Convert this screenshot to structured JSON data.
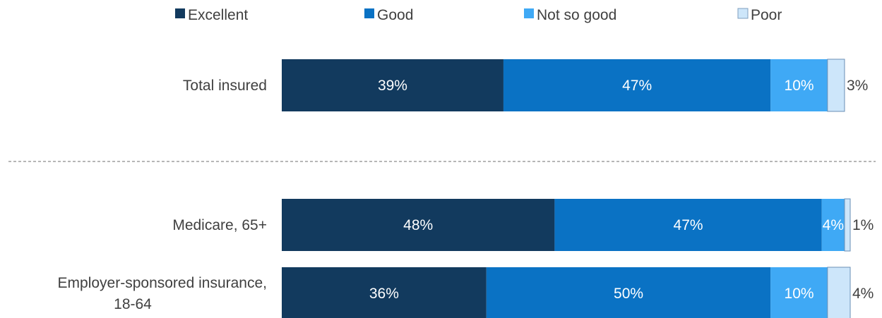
{
  "chart_data": {
    "type": "bar",
    "orientation": "horizontal",
    "stacked": true,
    "percent": true,
    "legend": {
      "placement": "top",
      "items": [
        {
          "name": "Excellent",
          "color": "#123a5e"
        },
        {
          "name": "Good",
          "color": "#0a72c4"
        },
        {
          "name": "Not so good",
          "color": "#3fa9f5"
        },
        {
          "name": "Poor",
          "color": "#cde6fa"
        }
      ]
    },
    "categories": [
      {
        "label": "Total insured",
        "lines": [
          "Total insured"
        ]
      },
      {
        "label": "Medicare, 65+",
        "lines": [
          "Medicare, 65+"
        ]
      },
      {
        "label": "Employer-sponsored insurance, 18-64",
        "lines": [
          "Employer-sponsored insurance,",
          "18-64"
        ]
      }
    ],
    "series": [
      {
        "name": "Excellent",
        "values": [
          39,
          48,
          36
        ],
        "labels": [
          "39%",
          "48%",
          "36%"
        ]
      },
      {
        "name": "Good",
        "values": [
          47,
          47,
          50
        ],
        "labels": [
          "47%",
          "47%",
          "50%"
        ]
      },
      {
        "name": "Not so good",
        "values": [
          10,
          4,
          10
        ],
        "labels": [
          "10%",
          "4%",
          "10%"
        ]
      },
      {
        "name": "Poor",
        "values": [
          3,
          1,
          4
        ],
        "labels": [
          "3%",
          "1%",
          "4%"
        ]
      }
    ],
    "xlim": [
      0,
      100
    ],
    "grid": false,
    "divider_after_category": 0
  }
}
